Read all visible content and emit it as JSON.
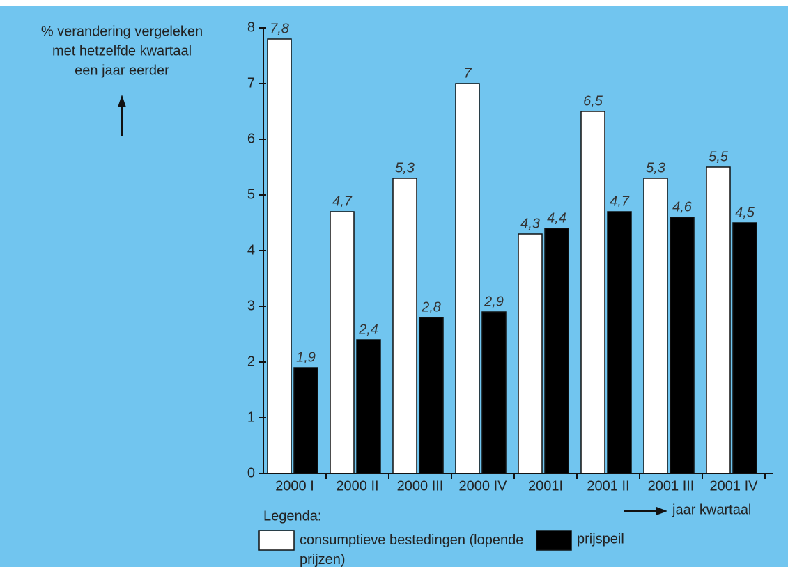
{
  "chart_data": {
    "type": "bar",
    "ylabel": [
      "% verandering vergeleken",
      "met hetzelfde kwartaal",
      "een jaar eerder"
    ],
    "xlabel": "jaar kwartaal",
    "legend_title": "Legenda:",
    "categories": [
      "2000 I",
      "2000 II",
      "2000 III",
      "2000 IV",
      "2001I",
      "2001 II",
      "2001 III",
      "2001 IV"
    ],
    "series": [
      {
        "name": "consumptieve bestedingen (lopende prijzen)",
        "color": "#ffffff",
        "values": [
          7.8,
          4.7,
          5.3,
          7,
          4.3,
          6.5,
          5.3,
          5.5
        ],
        "value_labels": [
          "7,8",
          "4,7",
          "5,3",
          "7",
          "4,3",
          "6,5",
          "5,3",
          "5,5"
        ]
      },
      {
        "name": "prijspeil",
        "color": "#000000",
        "values": [
          1.9,
          2.4,
          2.8,
          2.9,
          4.4,
          4.7,
          4.6,
          4.5
        ],
        "value_labels": [
          "1,9",
          "2,4",
          "2,8",
          "2,9",
          "4,4",
          "4,7",
          "4,6",
          "4,5"
        ]
      }
    ],
    "ylim": [
      0,
      8
    ],
    "yticks": [
      0,
      1,
      2,
      3,
      4,
      5,
      6,
      7,
      8
    ]
  }
}
